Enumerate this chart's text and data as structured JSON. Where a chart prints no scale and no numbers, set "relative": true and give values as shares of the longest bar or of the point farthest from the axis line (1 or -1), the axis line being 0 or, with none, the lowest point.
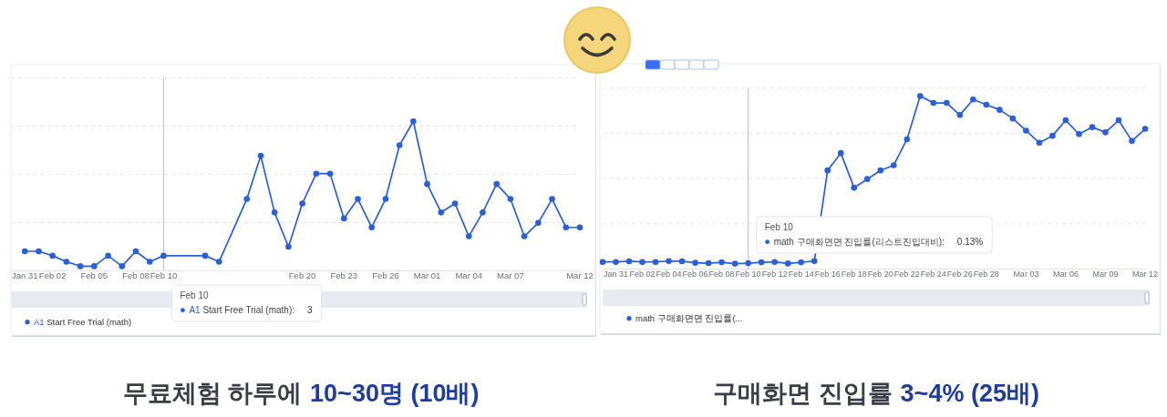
{
  "chart_data": [
    {
      "type": "line",
      "relative": true,
      "x": [
        "--01-31",
        "--02-01",
        "--02-02",
        "--02-03",
        "--02-04",
        "--02-05",
        "--02-06",
        "--02-07",
        "--02-08",
        "--02-09",
        "--02-10",
        "--02-13",
        "--02-14",
        "--02-16",
        "--02-17",
        "--02-18",
        "--02-19",
        "--02-20",
        "--02-21",
        "--02-22",
        "--02-23",
        "--02-24",
        "--02-25",
        "--02-26",
        "--02-27",
        "--02-28",
        "--03-01",
        "--03-02",
        "--03-03",
        "--03-04",
        "--03-05",
        "--03-06",
        "--03-07",
        "--03-08",
        "--03-09",
        "--03-10",
        "--03-11",
        "--03-12"
      ],
      "series": [
        {
          "name": "A1 Start Free Trial (math)",
          "color": "#2b5fd9",
          "values": [
            0.13,
            0.13,
            0.1,
            0.06,
            0.03,
            0.03,
            0.1,
            0.03,
            0.13,
            0.06,
            0.1,
            0.1,
            0.06,
            0.48,
            0.77,
            0.39,
            0.16,
            0.45,
            0.65,
            0.65,
            0.35,
            0.48,
            0.29,
            0.48,
            0.84,
            1,
            0.58,
            0.39,
            0.45,
            0.23,
            0.39,
            0.58,
            0.48,
            0.23,
            0.32,
            0.48,
            0.29,
            0.29
          ]
        }
      ],
      "xlim": [
        "--01-30",
        "--03-12"
      ],
      "xticks": [
        {
          "value": "--01-31",
          "label": "Jan 31"
        },
        {
          "value": "--02-02",
          "label": "Feb 02"
        },
        {
          "value": "--02-05",
          "label": "Feb 05"
        },
        {
          "value": "--02-08",
          "label": "Feb 08"
        },
        {
          "value": "--02-10",
          "label": "Feb 10"
        },
        {
          "value": "--02-20",
          "label": "Feb 20"
        },
        {
          "value": "--02-23",
          "label": "Feb 23"
        },
        {
          "value": "--02-26",
          "label": "Feb 26"
        },
        {
          "value": "--03-01",
          "label": "Mar 01"
        },
        {
          "value": "--03-04",
          "label": "Mar 04"
        },
        {
          "value": "--03-07",
          "label": "Mar 07"
        },
        {
          "value": "--03-12",
          "label": "Mar 12"
        }
      ],
      "grid": "y",
      "marker": "circle",
      "legend": "bottom left",
      "ref_lines": [
        {
          "axis": "x",
          "value": "--02-10",
          "color": "#c2c5cc"
        }
      ],
      "annotations": [
        "무료체험 하루에",
        "10~30명 (10배)",
        "Feb 10",
        "A1 Start Free Trial (math):",
        "3"
      ]
    },
    {
      "type": "line",
      "relative": true,
      "x": [
        "--01-30",
        "--01-31",
        "--02-01",
        "--02-02",
        "--02-03",
        "--02-04",
        "--02-05",
        "--02-06",
        "--02-07",
        "--02-08",
        "--02-09",
        "--02-10",
        "--02-11",
        "--02-12",
        "--02-13",
        "--02-14",
        "--02-15",
        "--02-16",
        "--02-17",
        "--02-18",
        "--02-19",
        "--02-20",
        "--02-21",
        "--02-22",
        "--02-23",
        "--02-24",
        "--02-25",
        "--02-26",
        "--02-27",
        "--02-28",
        "--03-01",
        "--03-02",
        "--03-03",
        "--03-04",
        "--03-05",
        "--03-06",
        "--03-07",
        "--03-08",
        "--03-09",
        "--03-10",
        "--03-11",
        "--03-12"
      ],
      "series": [
        {
          "name": "math 구매화면면 진입률(...",
          "color": "#2b5fd9",
          "values": [
            0.041,
            0.041,
            0.045,
            0.041,
            0.041,
            0.046,
            0.045,
            0.036,
            0.034,
            0.039,
            0.031,
            0.034,
            0.039,
            0.041,
            0.032,
            0.039,
            0.046,
            0.57,
            0.67,
            0.47,
            0.52,
            0.57,
            0.6,
            0.75,
            1,
            0.96,
            0.96,
            0.89,
            0.98,
            0.95,
            0.92,
            0.87,
            0.8,
            0.73,
            0.77,
            0.86,
            0.78,
            0.82,
            0.79,
            0.86,
            0.74,
            0.81
          ]
        }
      ],
      "xlim": [
        "--01-30",
        "--03-12"
      ],
      "xticks": [
        {
          "value": "--01-31",
          "label": "Jan 31"
        },
        {
          "value": "--02-02",
          "label": "Feb 02"
        },
        {
          "value": "--02-04",
          "label": "Feb 04"
        },
        {
          "value": "--02-06",
          "label": "Feb 06"
        },
        {
          "value": "--02-08",
          "label": "Feb 08"
        },
        {
          "value": "--02-10",
          "label": "Feb 10"
        },
        {
          "value": "--02-12",
          "label": "Feb 12"
        },
        {
          "value": "--02-14",
          "label": "Feb 14"
        },
        {
          "value": "--02-16",
          "label": "Feb 16"
        },
        {
          "value": "--02-18",
          "label": "Feb 18"
        },
        {
          "value": "--02-20",
          "label": "Feb 20"
        },
        {
          "value": "--02-22",
          "label": "Feb 22"
        },
        {
          "value": "--02-24",
          "label": "Feb 24"
        },
        {
          "value": "--02-26",
          "label": "Feb 26"
        },
        {
          "value": "--02-28",
          "label": "Feb 28"
        },
        {
          "value": "--03-03",
          "label": "Mar 03"
        },
        {
          "value": "--03-06",
          "label": "Mar 06"
        },
        {
          "value": "--03-09",
          "label": "Mar 09"
        },
        {
          "value": "--03-12",
          "label": "Mar 12"
        }
      ],
      "grid": "y",
      "marker": "circle",
      "legend": "bottom left",
      "ref_lines": [
        {
          "axis": "x",
          "value": "--02-10",
          "color": "#c2c5cc"
        }
      ],
      "annotations": [
        "구매화면 진입률",
        "3~4% (25배)",
        "Feb 10",
        "math 구매화면면 진입률(리스트진입대비):",
        "0.13%"
      ]
    }
  ]
}
